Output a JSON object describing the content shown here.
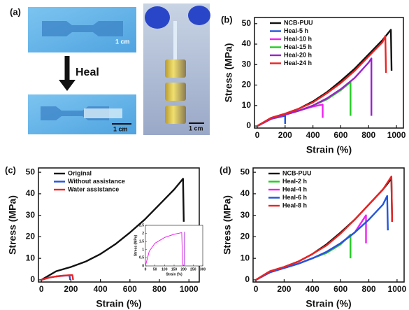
{
  "photo_panel": {
    "label": "(a)",
    "heal_label": "Heal",
    "scale_bars": [
      "1 cm",
      "1 cm",
      "1 cm"
    ]
  },
  "chart_data": [
    {
      "type": "line",
      "panel_label": "(b)",
      "xlabel": "Strain (%)",
      "ylabel": "Stress (MPa)",
      "xlim": [
        -20,
        1050
      ],
      "ylim": [
        -1,
        53
      ],
      "xticks": [
        0,
        200,
        400,
        600,
        800,
        1000
      ],
      "yticks": [
        0,
        10,
        20,
        30,
        40,
        50
      ],
      "legend": "upper left",
      "series": [
        {
          "name": "NCB-PUU",
          "color": "#111111",
          "x": [
            0,
            100,
            200,
            300,
            400,
            500,
            600,
            700,
            800,
            900,
            960,
            965
          ],
          "values": [
            0,
            4,
            6,
            8.5,
            12,
            16.5,
            22,
            28,
            35,
            42,
            47,
            27
          ]
        },
        {
          "name": "Heal-5 h",
          "color": "#2255dd",
          "x": [
            0,
            100,
            200,
            200
          ],
          "values": [
            0,
            3.5,
            5,
            1
          ]
        },
        {
          "name": "Heal-10 h",
          "color": "#ee22ee",
          "x": [
            0,
            100,
            200,
            300,
            400,
            470,
            470
          ],
          "values": [
            0,
            3.5,
            5.5,
            7.5,
            9.5,
            10.5,
            4
          ]
        },
        {
          "name": "Heal-15 h",
          "color": "#22cc22",
          "x": [
            0,
            100,
            200,
            300,
            400,
            500,
            600,
            670,
            670
          ],
          "values": [
            0,
            3.5,
            5.5,
            7.5,
            10,
            13,
            17.5,
            21.5,
            5
          ]
        },
        {
          "name": "Heal-20 h",
          "color": "#9922cc",
          "x": [
            0,
            100,
            200,
            300,
            400,
            500,
            600,
            700,
            800,
            820,
            820
          ],
          "values": [
            0,
            3.5,
            5.5,
            7.5,
            10,
            13.5,
            18,
            23.5,
            31,
            33,
            5
          ]
        },
        {
          "name": "Heal-24 h",
          "color": "#ee2222",
          "x": [
            0,
            100,
            200,
            300,
            400,
            500,
            600,
            700,
            800,
            900,
            920,
            925
          ],
          "values": [
            0,
            4,
            6,
            8.5,
            11.5,
            16,
            21,
            27,
            34,
            41,
            44,
            26
          ]
        }
      ]
    },
    {
      "type": "line",
      "panel_label": "(c)",
      "xlabel": "Strain (%)",
      "ylabel": "Stress (MPa)",
      "xlim": [
        -20,
        1070
      ],
      "ylim": [
        -1,
        52
      ],
      "xticks": [
        0,
        200,
        400,
        600,
        800,
        1000
      ],
      "yticks": [
        0,
        10,
        20,
        30,
        40,
        50
      ],
      "legend": "upper left",
      "series": [
        {
          "name": "Original",
          "color": "#111111",
          "x": [
            0,
            100,
            200,
            300,
            400,
            500,
            600,
            700,
            800,
            900,
            960,
            965
          ],
          "values": [
            0,
            4,
            6,
            8.5,
            12,
            16.5,
            22,
            28,
            35,
            42,
            47,
            27
          ]
        },
        {
          "name": "Without assistance",
          "color": "#2255dd",
          "x": [
            0,
            50,
            100,
            150,
            190,
            195
          ],
          "values": [
            0,
            1,
            1.6,
            1.9,
            2.1,
            0
          ]
        },
        {
          "name": "Water assistance",
          "color": "#ee2222",
          "x": [
            0,
            50,
            100,
            150,
            200,
            210,
            215
          ],
          "values": [
            0,
            1,
            1.6,
            2,
            2.2,
            2.2,
            0
          ]
        }
      ]
    },
    {
      "type": "line",
      "xlabel": "Strain (%)",
      "ylabel": "Stress (MPa)",
      "xlim": [
        0,
        300
      ],
      "ylim": [
        0,
        2.5
      ],
      "xticks": [
        0,
        50,
        100,
        150,
        200,
        250,
        300
      ],
      "yticks": [
        0,
        0.5,
        1,
        1.5,
        2,
        2.5
      ],
      "series": [
        {
          "color": "#ee22ee",
          "x": [
            0,
            20,
            50,
            100,
            150,
            190,
            195
          ],
          "values": [
            0,
            0.9,
            1.4,
            1.75,
            1.95,
            2.05,
            0
          ]
        },
        {
          "color": "#9922cc",
          "x": [
            205,
            205
          ],
          "values": [
            0,
            2.1
          ]
        }
      ]
    },
    {
      "type": "line",
      "panel_label": "(d)",
      "xlabel": "Strain (%)",
      "ylabel": "Stress (MPa)",
      "xlim": [
        -20,
        1050
      ],
      "ylim": [
        -1,
        52
      ],
      "xticks": [
        0,
        200,
        400,
        600,
        800,
        1000
      ],
      "yticks": [
        0,
        10,
        20,
        30,
        40,
        50
      ],
      "legend": "upper left",
      "series": [
        {
          "name": "NCB-PUU",
          "color": "#111111",
          "x": [
            0,
            100,
            200,
            300,
            400,
            500,
            600,
            700,
            800,
            900,
            960,
            965
          ],
          "values": [
            0,
            4,
            6,
            8.5,
            12,
            16.5,
            22,
            28,
            35,
            42,
            47,
            27
          ]
        },
        {
          "name": "Heal-2 h",
          "color": "#22cc22",
          "x": [
            0,
            100,
            200,
            300,
            400,
            500,
            600,
            670,
            670
          ],
          "values": [
            0,
            3.5,
            5.5,
            7.5,
            10,
            12.5,
            16.5,
            21,
            10
          ]
        },
        {
          "name": "Heal-4 h",
          "color": "#ee22ee",
          "x": [
            0,
            100,
            200,
            300,
            400,
            500,
            600,
            700,
            780,
            780
          ],
          "values": [
            0,
            3.5,
            5.5,
            7.5,
            10,
            13,
            17,
            22,
            30,
            17
          ]
        },
        {
          "name": "Heal-6 h",
          "color": "#2255dd",
          "x": [
            0,
            100,
            200,
            300,
            400,
            500,
            600,
            700,
            800,
            900,
            930,
            935
          ],
          "values": [
            0,
            3.5,
            5.5,
            7.5,
            10,
            13,
            17,
            22,
            28,
            35,
            39,
            23
          ]
        },
        {
          "name": "Heal-8 h",
          "color": "#ee2222",
          "x": [
            0,
            100,
            200,
            300,
            400,
            500,
            600,
            700,
            800,
            900,
            960,
            965
          ],
          "values": [
            0,
            4,
            6,
            8.5,
            12,
            16,
            21.5,
            28,
            35,
            42,
            48,
            27
          ]
        }
      ]
    }
  ]
}
